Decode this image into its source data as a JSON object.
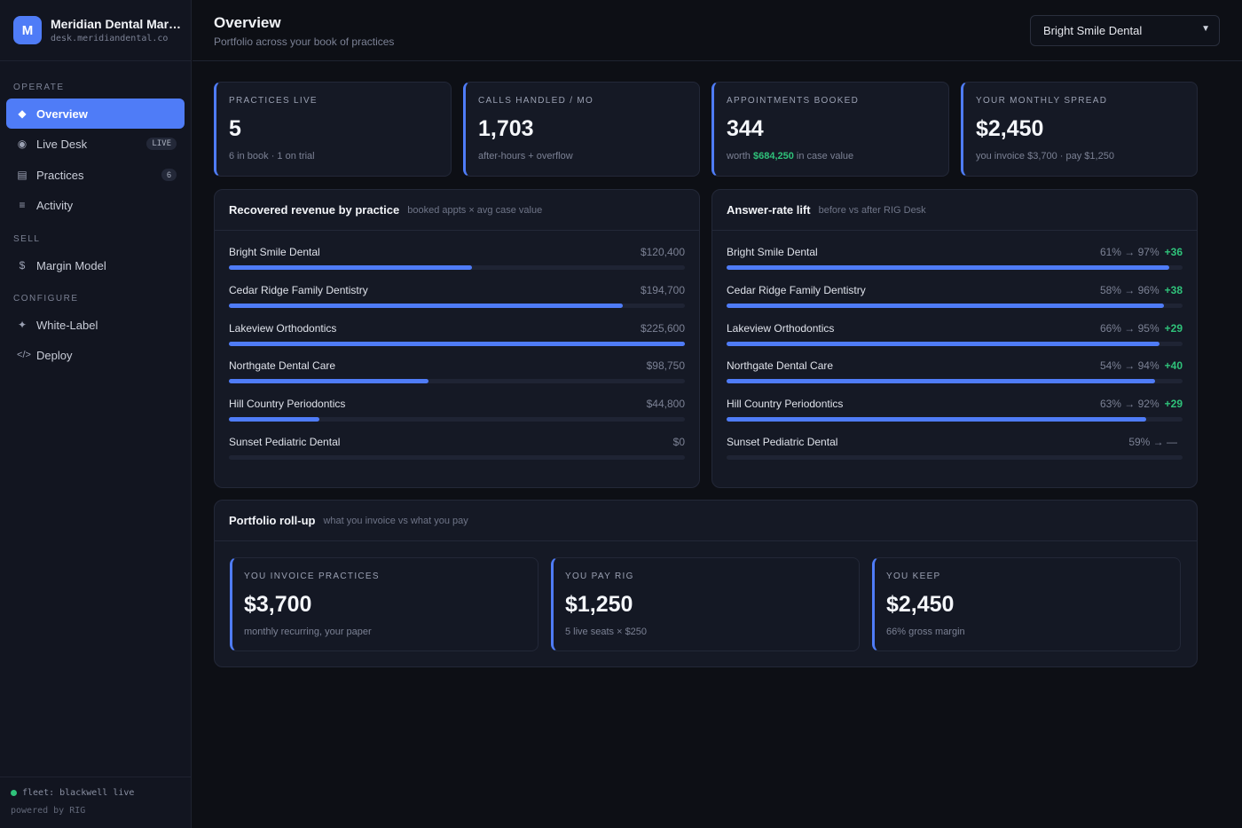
{
  "brand": {
    "initial": "M",
    "name": "Meridian Dental Mark...",
    "domain": "desk.meridiandental.co"
  },
  "nav": {
    "operate_label": "OPERATE",
    "sell_label": "SELL",
    "configure_label": "CONFIGURE",
    "items": [
      {
        "label": "Overview",
        "icon": "diamond-icon"
      },
      {
        "label": "Live Desk",
        "icon": "record-icon",
        "badge": "LIVE"
      },
      {
        "label": "Practices",
        "icon": "grid-icon",
        "badge": "6"
      },
      {
        "label": "Activity",
        "icon": "list-icon"
      },
      {
        "label": "Margin Model",
        "icon": "dollar-icon"
      },
      {
        "label": "White-Label",
        "icon": "sparkle-icon"
      },
      {
        "label": "Deploy",
        "icon": "code-icon"
      }
    ]
  },
  "footer": {
    "fleet": "fleet: blackwell live",
    "powered": "powered by RIG"
  },
  "header": {
    "title": "Overview",
    "subtitle": "Portfolio across your book of practices",
    "selected_practice": "Bright Smile Dental"
  },
  "stats": [
    {
      "label": "PRACTICES LIVE",
      "value": "5",
      "note": "6 in book · 1 on trial"
    },
    {
      "label": "CALLS HANDLED / MO",
      "value": "1,703",
      "note": "after-hours + overflow"
    },
    {
      "label": "APPOINTMENTS BOOKED",
      "value": "344",
      "note_pre": "worth",
      "note_highlight": "$684,250",
      "note_post": "in case value"
    },
    {
      "label": "YOUR MONTHLY SPREAD",
      "value": "$2,450",
      "note": "you invoice $3,700 · pay $1,250"
    }
  ],
  "revenue": {
    "title": "Recovered revenue by practice",
    "subtitle": "booked appts × avg case value",
    "rows": [
      {
        "name": "Bright Smile Dental",
        "value": "$120,400",
        "amount": 120400
      },
      {
        "name": "Cedar Ridge Family Dentistry",
        "value": "$194,700",
        "amount": 194700
      },
      {
        "name": "Lakeview Orthodontics",
        "value": "$225,600",
        "amount": 225600
      },
      {
        "name": "Northgate Dental Care",
        "value": "$98,750",
        "amount": 98750
      },
      {
        "name": "Hill Country Periodontics",
        "value": "$44,800",
        "amount": 44800
      },
      {
        "name": "Sunset Pediatric Dental",
        "value": "$0",
        "amount": 0
      }
    ]
  },
  "lift": {
    "title": "Answer-rate lift",
    "subtitle": "before vs after RIG Desk",
    "rows": [
      {
        "name": "Bright Smile Dental",
        "change": "61% → 97%",
        "delta": "+36",
        "after_pct": 97
      },
      {
        "name": "Cedar Ridge Family Dentistry",
        "change": "58% → 96%",
        "delta": "+38",
        "after_pct": 96
      },
      {
        "name": "Lakeview Orthodontics",
        "change": "66% → 95%",
        "delta": "+29",
        "after_pct": 95
      },
      {
        "name": "Northgate Dental Care",
        "change": "54% → 94%",
        "delta": "+40",
        "after_pct": 94
      },
      {
        "name": "Hill Country Periodontics",
        "change": "63% → 92%",
        "delta": "+29",
        "after_pct": 92
      },
      {
        "name": "Sunset Pediatric Dental",
        "change": "59% → —",
        "delta": "",
        "after_pct": 0
      }
    ]
  },
  "rollup": {
    "title": "Portfolio roll-up",
    "subtitle": "what you invoice vs what you pay",
    "cards": [
      {
        "label": "YOU INVOICE PRACTICES",
        "value": "$3,700",
        "note": "monthly recurring, your paper"
      },
      {
        "label": "YOU PAY RIG",
        "value": "$1,250",
        "note": "5 live seats × $250"
      },
      {
        "label": "YOU KEEP",
        "value": "$2,450",
        "note": "66% gross margin"
      }
    ]
  },
  "colors": {
    "accent": "#4f7cf7",
    "positive": "#2fc27a",
    "background": "#0d0f15",
    "surface": "#151925"
  }
}
